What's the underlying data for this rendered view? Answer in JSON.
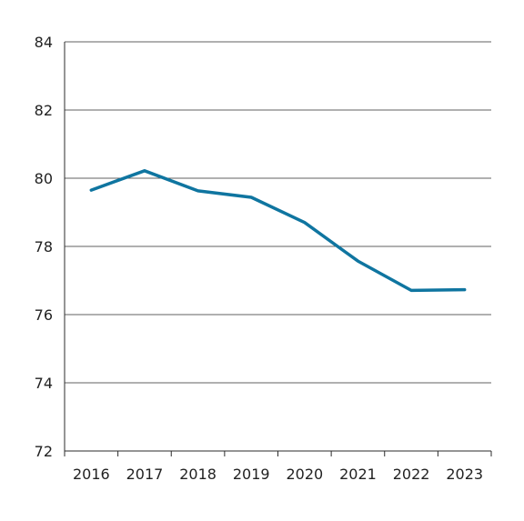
{
  "chart_data": {
    "type": "line",
    "title": "",
    "xlabel": "",
    "ylabel": "",
    "categories": [
      "2016",
      "2017",
      "2018",
      "2019",
      "2020",
      "2021",
      "2022",
      "2023"
    ],
    "series": [
      {
        "values": [
          79.65,
          80.22,
          79.63,
          79.44,
          78.7,
          77.57,
          76.71,
          76.73
        ]
      }
    ],
    "ylim": [
      72,
      84
    ],
    "yticks": [
      "72",
      "74",
      "76",
      "78",
      "80",
      "82",
      "84"
    ],
    "grid": "horizontal",
    "legend": "none",
    "colors": {
      "line": "#0f75a0",
      "grid": "#2b2b2b",
      "axis": "#2b2b2b"
    }
  }
}
